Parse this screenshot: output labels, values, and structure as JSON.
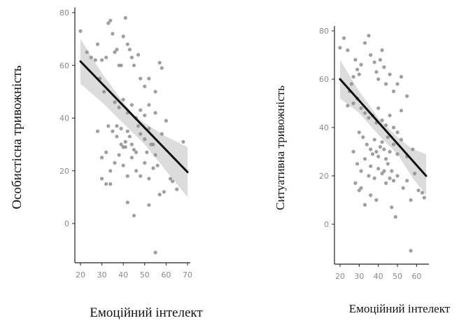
{
  "colors": {
    "point": "#8e8e8e",
    "fit_line": "#111111",
    "confidence_band": "#d6d6d6",
    "axis": "#222222",
    "tick_text": "#8a8a8a"
  },
  "chart_data": [
    {
      "type": "scatter",
      "xlabel": "Емоційний інтелект",
      "ylabel": "Особистісна тривожність",
      "xlim": [
        20,
        70
      ],
      "ylim": [
        -15,
        82
      ],
      "xticks": [
        "20",
        "30",
        "40",
        "50",
        "60",
        "70"
      ],
      "yticks": [
        "0",
        "20",
        "40",
        "60",
        "80"
      ],
      "grid": false,
      "fit": {
        "x": [
          20,
          70
        ],
        "y": [
          61.5,
          19.5
        ]
      },
      "band": {
        "x": [
          20,
          30,
          40,
          45,
          50,
          60,
          70
        ],
        "upper": [
          70,
          57,
          46,
          41,
          38,
          33,
          29
        ],
        "lower": [
          53,
          46,
          38,
          34,
          30,
          20,
          10
        ]
      },
      "points": [
        [
          20,
          73
        ],
        [
          23,
          65
        ],
        [
          25,
          63
        ],
        [
          27,
          62
        ],
        [
          28,
          68
        ],
        [
          29,
          55
        ],
        [
          30,
          62
        ],
        [
          31,
          50
        ],
        [
          32,
          63
        ],
        [
          33,
          76
        ],
        [
          34,
          77
        ],
        [
          35,
          72
        ],
        [
          36,
          65
        ],
        [
          37,
          66
        ],
        [
          38,
          60
        ],
        [
          39,
          60
        ],
        [
          40,
          71
        ],
        [
          41,
          78
        ],
        [
          42,
          68
        ],
        [
          43,
          66
        ],
        [
          44,
          63
        ],
        [
          45,
          60
        ],
        [
          47,
          64
        ],
        [
          48,
          55
        ],
        [
          50,
          52
        ],
        [
          52,
          55
        ],
        [
          55,
          50
        ],
        [
          57,
          61
        ],
        [
          58,
          59
        ],
        [
          36,
          46
        ],
        [
          38,
          44
        ],
        [
          40,
          47
        ],
        [
          42,
          42
        ],
        [
          44,
          45
        ],
        [
          46,
          40
        ],
        [
          48,
          43
        ],
        [
          50,
          41
        ],
        [
          52,
          45
        ],
        [
          55,
          42
        ],
        [
          33,
          37
        ],
        [
          35,
          35
        ],
        [
          37,
          33
        ],
        [
          39,
          30
        ],
        [
          40,
          29
        ],
        [
          41,
          31
        ],
        [
          42,
          35
        ],
        [
          43,
          33
        ],
        [
          44,
          30
        ],
        [
          45,
          28
        ],
        [
          46,
          27
        ],
        [
          48,
          34
        ],
        [
          50,
          32
        ],
        [
          52,
          36
        ],
        [
          54,
          30
        ],
        [
          55,
          26
        ],
        [
          58,
          34
        ],
        [
          60,
          39
        ],
        [
          28,
          35
        ],
        [
          30,
          25
        ],
        [
          32,
          27
        ],
        [
          34,
          20
        ],
        [
          36,
          23
        ],
        [
          38,
          26
        ],
        [
          40,
          22
        ],
        [
          42,
          18
        ],
        [
          44,
          25
        ],
        [
          46,
          20
        ],
        [
          48,
          18
        ],
        [
          50,
          23
        ],
        [
          52,
          17
        ],
        [
          54,
          21
        ],
        [
          56,
          22
        ],
        [
          59,
          12
        ],
        [
          62,
          17
        ],
        [
          63,
          16
        ],
        [
          65,
          13
        ],
        [
          68,
          31
        ],
        [
          30,
          17
        ],
        [
          32,
          15
        ],
        [
          34,
          15
        ],
        [
          37,
          37
        ],
        [
          42,
          8
        ],
        [
          45,
          3
        ],
        [
          52,
          7
        ],
        [
          57,
          11
        ],
        [
          55,
          -11
        ],
        [
          39,
          36
        ],
        [
          41,
          29
        ],
        [
          47,
          37
        ],
        [
          51,
          27
        ],
        [
          53,
          30
        ]
      ]
    },
    {
      "type": "scatter",
      "xlabel": "Емоційний інтелект",
      "ylabel": "Ситуативна тривожність",
      "xlim": [
        20,
        65
      ],
      "ylim": [
        -15,
        82
      ],
      "xticks": [
        "20",
        "30",
        "40",
        "50",
        "60"
      ],
      "yticks": [
        "0",
        "20",
        "40",
        "60",
        "80"
      ],
      "grid": false,
      "fit": {
        "x": [
          20,
          65
        ],
        "y": [
          60,
          20
        ]
      },
      "band": {
        "x": [
          20,
          30,
          40,
          45,
          50,
          58,
          65
        ],
        "upper": [
          68,
          55,
          44,
          40,
          36,
          31,
          29
        ],
        "lower": [
          52,
          46,
          37,
          33,
          29,
          19,
          12
        ]
      },
      "points": [
        [
          20,
          73
        ],
        [
          22,
          77
        ],
        [
          24,
          72
        ],
        [
          27,
          61
        ],
        [
          28,
          68
        ],
        [
          29,
          64
        ],
        [
          30,
          62
        ],
        [
          31,
          66
        ],
        [
          33,
          75
        ],
        [
          35,
          78
        ],
        [
          36,
          70
        ],
        [
          38,
          67
        ],
        [
          39,
          63
        ],
        [
          40,
          60
        ],
        [
          41,
          68
        ],
        [
          42,
          72
        ],
        [
          43,
          65
        ],
        [
          44,
          58
        ],
        [
          46,
          62
        ],
        [
          48,
          55
        ],
        [
          50,
          58
        ],
        [
          52,
          61
        ],
        [
          55,
          53
        ],
        [
          25,
          55
        ],
        [
          27,
          50
        ],
        [
          29,
          52
        ],
        [
          31,
          48
        ],
        [
          33,
          46
        ],
        [
          35,
          44
        ],
        [
          37,
          45
        ],
        [
          39,
          42
        ],
        [
          40,
          48
        ],
        [
          42,
          43
        ],
        [
          44,
          41
        ],
        [
          46,
          45
        ],
        [
          48,
          40
        ],
        [
          50,
          38
        ],
        [
          52,
          47
        ],
        [
          30,
          38
        ],
        [
          32,
          36
        ],
        [
          34,
          33
        ],
        [
          36,
          31
        ],
        [
          37,
          29
        ],
        [
          38,
          35
        ],
        [
          39,
          30
        ],
        [
          40,
          28
        ],
        [
          41,
          32
        ],
        [
          42,
          34
        ],
        [
          43,
          31
        ],
        [
          44,
          27
        ],
        [
          45,
          36
        ],
        [
          46,
          30
        ],
        [
          48,
          33
        ],
        [
          50,
          29
        ],
        [
          52,
          35
        ],
        [
          55,
          28
        ],
        [
          58,
          31
        ],
        [
          27,
          30
        ],
        [
          29,
          25
        ],
        [
          31,
          22
        ],
        [
          33,
          27
        ],
        [
          35,
          20
        ],
        [
          36,
          24
        ],
        [
          38,
          19
        ],
        [
          40,
          23
        ],
        [
          42,
          21
        ],
        [
          44,
          17
        ],
        [
          45,
          25
        ],
        [
          46,
          19
        ],
        [
          47,
          22
        ],
        [
          48,
          18
        ],
        [
          50,
          20
        ],
        [
          53,
          15
        ],
        [
          55,
          18
        ],
        [
          57,
          10
        ],
        [
          59,
          21
        ],
        [
          61,
          14
        ],
        [
          63,
          13
        ],
        [
          64,
          11
        ],
        [
          28,
          17
        ],
        [
          30,
          14
        ],
        [
          31,
          15
        ],
        [
          33,
          8
        ],
        [
          36,
          12
        ],
        [
          39,
          10
        ],
        [
          43,
          22
        ],
        [
          47,
          7
        ],
        [
          49,
          3
        ],
        [
          57,
          -11
        ],
        [
          24,
          49
        ],
        [
          26,
          58
        ]
      ]
    }
  ]
}
